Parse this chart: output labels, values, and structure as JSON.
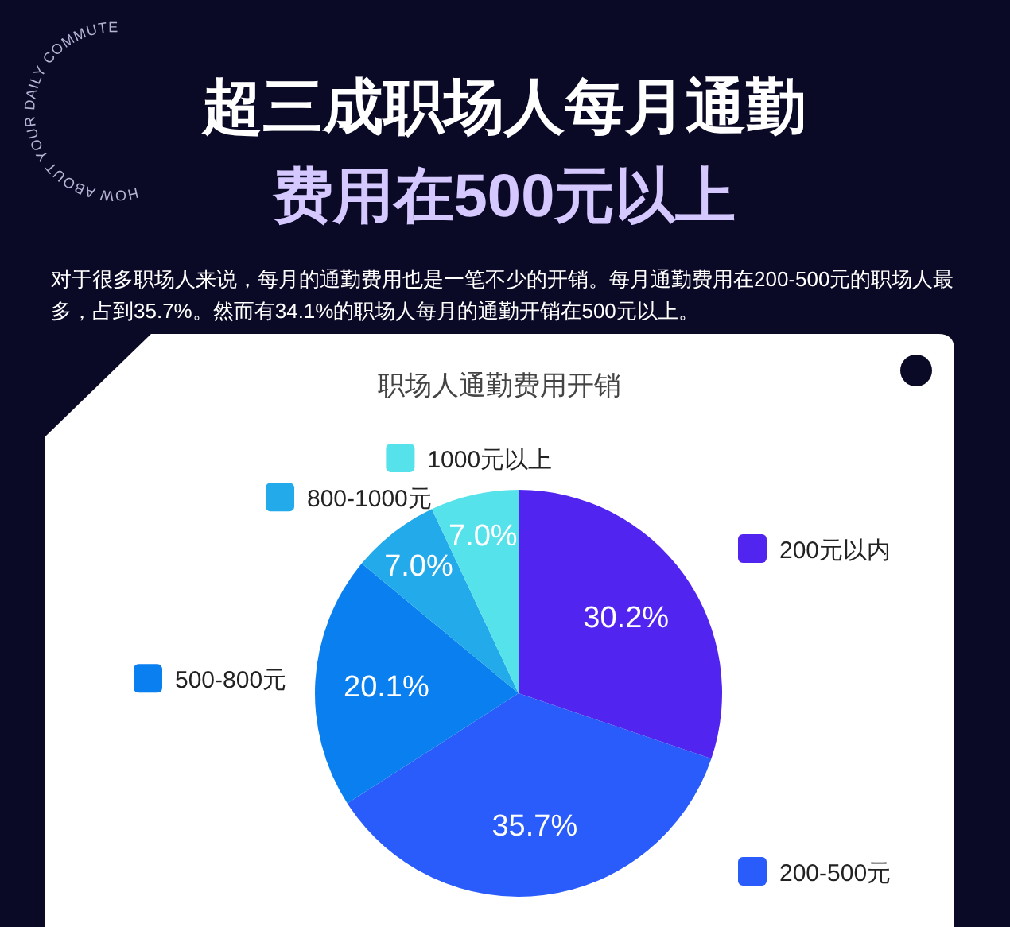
{
  "chart_data": {
    "type": "pie",
    "title": "超三成职场人每月通勤费用在500元以上",
    "legend": "right",
    "subtitle": "对于很多职场人来说，每月的通勤费用也是一笔不少的开销。每月通勤费用在200-500元的职场人最多，占到35.7%。然而有34.1%的职场人每月的通勤开销在500元以上。",
    "annotations": [
      "职场人通勤费用开销",
      "HOW ABOUT YOUR DAILY COMMUTE"
    ],
    "categories": [
      "200元以内",
      "200-500元",
      "500-800元",
      "800-1000元",
      "1000元以上"
    ],
    "values": [
      30.2,
      35.7,
      20.1,
      7.0,
      7.0
    ],
    "value_labels": [
      "30.2%",
      "35.7%",
      "20.1%",
      "7.0%",
      "7.0%"
    ],
    "colors": [
      "#5224f0",
      "#2a5bfb",
      "#0a80f0",
      "#22aaea",
      "#55e2ea"
    ]
  }
}
